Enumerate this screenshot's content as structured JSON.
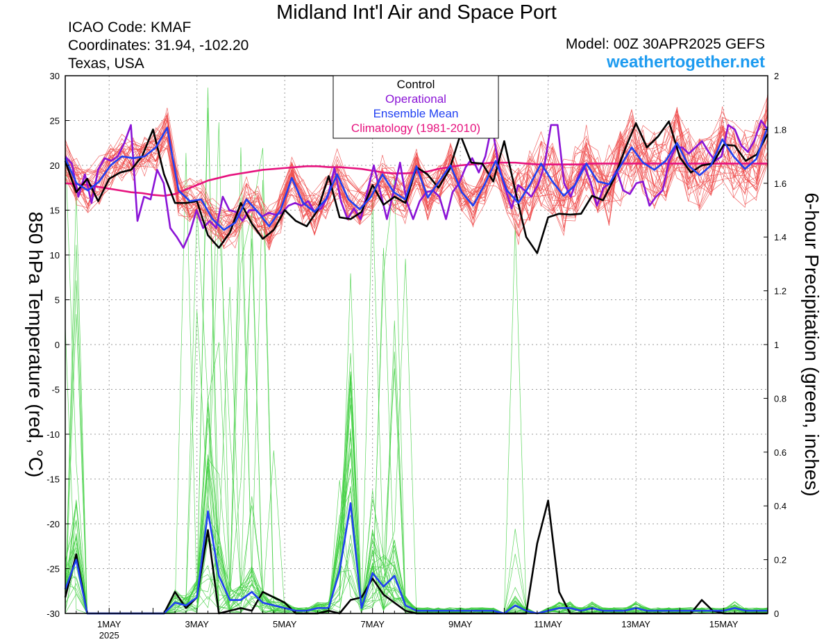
{
  "header": {
    "title": "Midland Int'l Air and Space Port",
    "icao": "ICAO Code: KMAF",
    "coordinates": "Coordinates: 31.94, -102.20",
    "location": "Texas, USA",
    "model": "Model: 00Z 30APR2025 GEFS",
    "site": "weathertogether.net"
  },
  "colors": {
    "members_temp": "#ee4a4a",
    "members_precip": "#3fcf3f",
    "control": "#000000",
    "operational": "#8a13d6",
    "ensemble_mean": "#1f3ff2",
    "climatology": "#e6127e",
    "site": "#1d9bf0"
  },
  "chart_data": {
    "type": "line",
    "title": "Midland Int'l Air and Space Port",
    "ylabel_left": "850 hPa Temperature (red, °C)",
    "ylabel_right": "6-hour Precipitation (green, inches)",
    "x_axis": "6-hourly time steps starting 00Z 30 APR 2025",
    "x_ticks": [
      {
        "label": "1MAY",
        "step": 4
      },
      {
        "label": "3MAY",
        "step": 12
      },
      {
        "label": "5MAY",
        "step": 20
      },
      {
        "label": "7MAY",
        "step": 28
      },
      {
        "label": "9MAY",
        "step": 36
      },
      {
        "label": "11MAY",
        "step": 44
      },
      {
        "label": "13MAY",
        "step": 52
      },
      {
        "label": "15MAY",
        "step": 60
      }
    ],
    "year_label": "2025",
    "ylim_left": [
      -30,
      30
    ],
    "yticks_left": [
      "30",
      "25",
      "20",
      "15",
      "10",
      "5",
      "0",
      "-5",
      "-10",
      "-15",
      "-20",
      "-25",
      "-30"
    ],
    "ylim_right": [
      0,
      2
    ],
    "yticks_right": [
      "2",
      "1.8",
      "1.6",
      "1.4",
      "1.2",
      "1",
      "0.8",
      "0.6",
      "0.4",
      "0.2",
      "0"
    ],
    "grid": true,
    "legend_position": "top-center",
    "legend": [
      "Control",
      "Operational",
      "Ensemble Mean",
      "Climatology (1981-2010)"
    ],
    "series": [
      {
        "name": "Control",
        "axis": "temperature",
        "values": [
          20.5,
          17,
          18.5,
          16,
          18.5,
          19.2,
          19.5,
          21,
          24,
          19,
          15.8,
          15.8,
          16,
          12.2,
          10.8,
          12.5,
          15.8,
          13.5,
          11.8,
          12.8,
          15,
          13.8,
          13.2,
          15,
          18.8,
          14.2,
          14,
          14.8,
          17.8,
          15.6,
          16.5,
          15.8,
          19.8,
          19,
          17.5,
          19.5,
          23.4,
          20.3,
          20.2,
          18.2,
          22.7,
          17.2,
          12,
          10.2,
          14.2,
          14.6,
          14.5,
          14.6,
          16.6,
          16.1,
          18.5,
          21.8,
          24.7,
          22,
          23.2,
          24.9,
          20.9,
          19.2,
          20,
          20.2,
          22.3,
          22.2,
          20.5,
          21.2,
          23.5
        ]
      },
      {
        "name": "Operational",
        "axis": "temperature",
        "values": [
          21,
          20.2,
          16.5,
          19,
          15.8,
          19.5,
          20.8,
          20.5,
          21,
          22.5,
          24.5,
          13.8,
          16.5,
          16.2,
          19.5,
          18,
          13,
          12,
          10.8,
          12.5,
          15,
          13,
          13.8,
          13,
          16.5,
          15,
          14.8,
          13.8,
          15,
          15,
          14.3,
          14.7,
          14.5,
          14.7,
          15.5,
          15.8,
          15.5,
          16,
          14.8,
          15.2,
          16.5,
          19.7,
          16,
          14,
          15.2,
          14,
          17,
          20,
          17,
          14,
          17,
          20.3,
          16,
          14,
          16,
          17,
          17.2,
          16.5,
          14,
          17,
          18,
          19.8,
          20.8,
          19.2,
          21,
          24.5,
          20,
          17.5,
          15.2,
          17.8,
          17.2,
          16.5,
          17.8,
          20,
          24.5,
          24.5,
          18,
          16.5,
          18.5,
          20,
          18.2,
          15.5,
          17.5,
          18,
          19.5,
          17.2,
          16.8,
          18,
          18.2,
          15.5,
          16.5,
          17.2,
          20.5,
          22,
          22,
          21.3,
          22,
          22.7,
          21.5,
          20.5,
          21,
          24.5,
          24,
          22.2,
          21.5,
          22.8,
          25,
          24
        ]
      },
      {
        "name": "Ensemble Mean",
        "axis": "temperature",
        "values": [
          20.8,
          18,
          17.2,
          18.2,
          20,
          21,
          20.8,
          21,
          22,
          24.2,
          17.2,
          16,
          16.2,
          14,
          12.8,
          13.6,
          16.2,
          14.8,
          13.2,
          15,
          18.6,
          15.8,
          14.8,
          16.2,
          19,
          16.2,
          15.1,
          16.5,
          19,
          17,
          16.2,
          19.9,
          16.4,
          18.2,
          20,
          17,
          15.5,
          17.8,
          20.5,
          17.2,
          15.8,
          17.8,
          20.2,
          18.2,
          16.6,
          17.8,
          20.2,
          18.2,
          17.9,
          19.9,
          22,
          20.3,
          19.5,
          20.5,
          22.5,
          20,
          18.9,
          20,
          22.9,
          21,
          19.6,
          20.7,
          24.3
        ]
      },
      {
        "name": "Climatology (1981-2010)",
        "axis": "temperature",
        "values": [
          18,
          17.9,
          17.8,
          17.6,
          17.4,
          17.2,
          17,
          16.9,
          16.7,
          16.6,
          16.8,
          17.3,
          17.8,
          18.3,
          18.6,
          18.9,
          19.1,
          19.3,
          19.5,
          19.6,
          19.7,
          19.8,
          19.9,
          19.9,
          19.8,
          19.8,
          19.7,
          19.6,
          19.4,
          19.2,
          19.1,
          19.1,
          19.2,
          19.3,
          19.6,
          19.8,
          20,
          20.1,
          20.2,
          20.3,
          20.3,
          20.3,
          20.2,
          20.1,
          20.1,
          20.1,
          20.1,
          20.1,
          20.2,
          20.2,
          20.2,
          20.2,
          20.2,
          20.2,
          20.2,
          20.2,
          20.2,
          20.2,
          20.2,
          20.2,
          20.2,
          20.2,
          20.2,
          20.2,
          20.2
        ]
      },
      {
        "name": "Control",
        "axis": "precipitation",
        "values": [
          0.06,
          0.22,
          0,
          0,
          0,
          0,
          0,
          0,
          0,
          0,
          0.08,
          0.02,
          0.06,
          0.31,
          0,
          0.01,
          0.02,
          0.01,
          0.08,
          0.06,
          0.04,
          0,
          0,
          0,
          0.01,
          0,
          0.05,
          0.06,
          0.13,
          0.07,
          0.04,
          0.01,
          0,
          0,
          0,
          0,
          0,
          0,
          0,
          0,
          0,
          0,
          0,
          0.26,
          0.42,
          0.08,
          0,
          0,
          0,
          0,
          0,
          0,
          0,
          0,
          0,
          0,
          0,
          0,
          0.05,
          0.01,
          0,
          0,
          0,
          0,
          0
        ]
      },
      {
        "name": "Ensemble Mean",
        "axis": "precipitation",
        "values": [
          0.09,
          0.2,
          0,
          0,
          0,
          0,
          0,
          0,
          0,
          0,
          0.04,
          0.03,
          0.06,
          0.38,
          0.14,
          0.05,
          0.05,
          0.08,
          0.04,
          0.03,
          0.02,
          0.01,
          0.01,
          0.02,
          0.02,
          0.16,
          0.41,
          0.02,
          0.15,
          0.1,
          0.14,
          0.03,
          0.01,
          0.01,
          0.01,
          0.01,
          0.01,
          0.01,
          0.01,
          0.01,
          0,
          0.03,
          0.01,
          0,
          0.01,
          0.02,
          0.02,
          0.01,
          0.02,
          0.01,
          0.01,
          0.01,
          0.02,
          0.01,
          0.01,
          0.01,
          0.01,
          0.01,
          0.01,
          0.01,
          0.01,
          0.02,
          0.01,
          0.01,
          0.01
        ]
      }
    ],
    "ensemble_members": {
      "temperature_count": 30,
      "precipitation_count": 30,
      "temperature_spread": 2.2,
      "temperature_late_spread": 4.2
    }
  }
}
